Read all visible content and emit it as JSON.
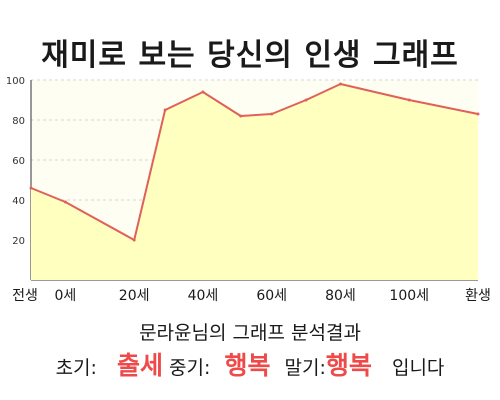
{
  "title": "재미로 보는 당신의 인생 그래프",
  "chart_data": {
    "type": "area",
    "title": "재미로 보는 당신의 인생 그래프",
    "x_tick_labels": [
      "전생",
      "0세",
      "20세",
      "40세",
      "60세",
      "80세",
      "100세",
      "환생"
    ],
    "y_ticks": [
      20,
      40,
      60,
      80,
      100
    ],
    "ylim": [
      0,
      100
    ],
    "grid": true,
    "line_color": "#e0605a",
    "fill_color": "#ffffc0",
    "series": [
      {
        "points": [
          {
            "x": -10,
            "y": 46
          },
          {
            "x": 0,
            "y": 39
          },
          {
            "x": 20,
            "y": 20
          },
          {
            "x": 29,
            "y": 85
          },
          {
            "x": 40,
            "y": 94
          },
          {
            "x": 51,
            "y": 82
          },
          {
            "x": 60,
            "y": 83
          },
          {
            "x": 70,
            "y": 90
          },
          {
            "x": 80,
            "y": 98
          },
          {
            "x": 100,
            "y": 90
          },
          {
            "x": 120,
            "y": 83
          }
        ]
      }
    ]
  },
  "analysis": {
    "heading": "문라윤님의 그래프 분석결과",
    "early_label": "초기:",
    "early_value": "출세",
    "mid_label": "중기:",
    "mid_value": "행복",
    "late_label": "말기:",
    "late_value": "행복",
    "suffix": "입니다"
  }
}
